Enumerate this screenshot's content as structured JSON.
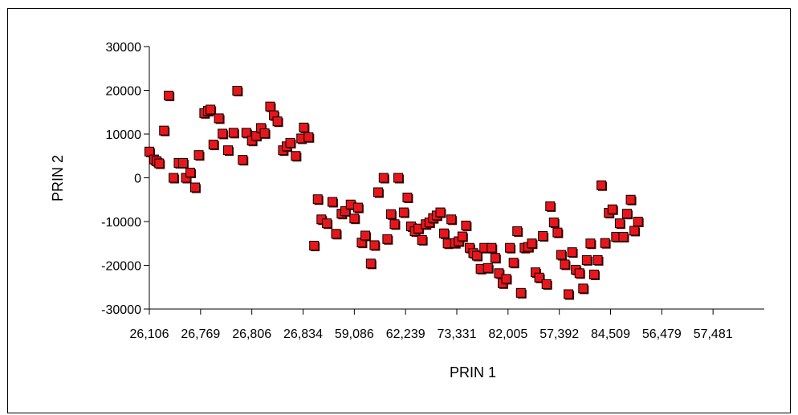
{
  "chart_data": {
    "type": "scatter",
    "xlabel": "PRIN 1",
    "ylabel": "PRIN 2",
    "ylim": [
      -30000,
      30000
    ],
    "y_ticks": [
      30000,
      20000,
      10000,
      0,
      -10000,
      -20000,
      -30000
    ],
    "y_tick_labels": [
      "30000",
      "20000",
      "10000",
      "0",
      "-10000",
      "-20000",
      "-30000"
    ],
    "x_tick_labels": [
      "26,106",
      "26,769",
      "26,806",
      "26,834",
      "59,086",
      "62,239",
      "73,331",
      "82,005",
      "57,392",
      "84,509",
      "56,479",
      "57,481"
    ],
    "x_tick_index": [
      0,
      14,
      28,
      42,
      56,
      70,
      84,
      98,
      112,
      126,
      140,
      154
    ],
    "x_index_range": [
      0,
      168
    ],
    "marker": {
      "shape": "square",
      "fill": "#e8161b",
      "stroke": "#000000"
    },
    "points": [
      {
        "x": 0,
        "y": 6000
      },
      {
        "x": 1.3,
        "y": 4200
      },
      {
        "x": 2,
        "y": 3800
      },
      {
        "x": 2.7,
        "y": 3300
      },
      {
        "x": 4,
        "y": 10800
      },
      {
        "x": 5.3,
        "y": 18800
      },
      {
        "x": 6.6,
        "y": 0
      },
      {
        "x": 8,
        "y": 3400
      },
      {
        "x": 9.2,
        "y": 3400
      },
      {
        "x": 10,
        "y": 0
      },
      {
        "x": 11.2,
        "y": 1200
      },
      {
        "x": 12.5,
        "y": -2200
      },
      {
        "x": 13.5,
        "y": 5200
      },
      {
        "x": 15,
        "y": 14800
      },
      {
        "x": 16,
        "y": 15300
      },
      {
        "x": 16.7,
        "y": 15600
      },
      {
        "x": 17.5,
        "y": 7600
      },
      {
        "x": 19,
        "y": 13600
      },
      {
        "x": 20,
        "y": 10100
      },
      {
        "x": 21.5,
        "y": 6300
      },
      {
        "x": 23,
        "y": 10300
      },
      {
        "x": 24,
        "y": 19900
      },
      {
        "x": 25.5,
        "y": 4100
      },
      {
        "x": 26.5,
        "y": 10300
      },
      {
        "x": 28,
        "y": 8500
      },
      {
        "x": 29.2,
        "y": 9600
      },
      {
        "x": 30.5,
        "y": 11400
      },
      {
        "x": 31.5,
        "y": 10200
      },
      {
        "x": 33,
        "y": 16300
      },
      {
        "x": 34,
        "y": 14300
      },
      {
        "x": 35,
        "y": 12900
      },
      {
        "x": 36.5,
        "y": 6300
      },
      {
        "x": 37.5,
        "y": 7200
      },
      {
        "x": 38.5,
        "y": 8000
      },
      {
        "x": 40,
        "y": 5000
      },
      {
        "x": 41.5,
        "y": 9000
      },
      {
        "x": 42.2,
        "y": 11500
      },
      {
        "x": 43.5,
        "y": 9300
      },
      {
        "x": 45,
        "y": -15500
      },
      {
        "x": 46,
        "y": -4900
      },
      {
        "x": 47,
        "y": -9500
      },
      {
        "x": 48.5,
        "y": -10400
      },
      {
        "x": 50,
        "y": -5500
      },
      {
        "x": 51,
        "y": -12800
      },
      {
        "x": 52.5,
        "y": -8200
      },
      {
        "x": 53.5,
        "y": -7600
      },
      {
        "x": 55,
        "y": -6100
      },
      {
        "x": 56,
        "y": -9300
      },
      {
        "x": 57,
        "y": -6800
      },
      {
        "x": 58,
        "y": -14800
      },
      {
        "x": 59,
        "y": -13200
      },
      {
        "x": 60.5,
        "y": -19600
      },
      {
        "x": 61.5,
        "y": -15400
      },
      {
        "x": 62.5,
        "y": -3300
      },
      {
        "x": 64,
        "y": 0
      },
      {
        "x": 65,
        "y": -14000
      },
      {
        "x": 66,
        "y": -8300
      },
      {
        "x": 67,
        "y": -10600
      },
      {
        "x": 68,
        "y": 0
      },
      {
        "x": 69.5,
        "y": -7900
      },
      {
        "x": 70.5,
        "y": -4500
      },
      {
        "x": 71.5,
        "y": -11100
      },
      {
        "x": 72.5,
        "y": -12200
      },
      {
        "x": 73.5,
        "y": -11600
      },
      {
        "x": 74.5,
        "y": -14200
      },
      {
        "x": 75.5,
        "y": -10600
      },
      {
        "x": 76.5,
        "y": -10200
      },
      {
        "x": 77.5,
        "y": -9200
      },
      {
        "x": 78.5,
        "y": -8600
      },
      {
        "x": 79.5,
        "y": -7900
      },
      {
        "x": 80.5,
        "y": -12700
      },
      {
        "x": 81.5,
        "y": -15000
      },
      {
        "x": 82.5,
        "y": -9500
      },
      {
        "x": 83.5,
        "y": -14900
      },
      {
        "x": 84.5,
        "y": -14500
      },
      {
        "x": 85.5,
        "y": -13400
      },
      {
        "x": 86.5,
        "y": -10900
      },
      {
        "x": 87.5,
        "y": -16000
      },
      {
        "x": 88.5,
        "y": -17200
      },
      {
        "x": 89.5,
        "y": -17800
      },
      {
        "x": 90.5,
        "y": -20800
      },
      {
        "x": 91.5,
        "y": -16000
      },
      {
        "x": 92.5,
        "y": -20600
      },
      {
        "x": 93.5,
        "y": -16000
      },
      {
        "x": 94.5,
        "y": -18300
      },
      {
        "x": 95.5,
        "y": -21800
      },
      {
        "x": 96.5,
        "y": -24100
      },
      {
        "x": 97.5,
        "y": -23100
      },
      {
        "x": 98.5,
        "y": -16000
      },
      {
        "x": 99.5,
        "y": -19400
      },
      {
        "x": 100.5,
        "y": -12200
      },
      {
        "x": 101.5,
        "y": -26300
      },
      {
        "x": 102.5,
        "y": -16000
      },
      {
        "x": 103.5,
        "y": -15800
      },
      {
        "x": 104.5,
        "y": -15000
      },
      {
        "x": 105.5,
        "y": -21600
      },
      {
        "x": 106.5,
        "y": -22800
      },
      {
        "x": 107.5,
        "y": -13300
      },
      {
        "x": 108.5,
        "y": -24300
      },
      {
        "x": 109.5,
        "y": -6500
      },
      {
        "x": 110.5,
        "y": -10200
      },
      {
        "x": 111.5,
        "y": -12500
      },
      {
        "x": 112.5,
        "y": -17600
      },
      {
        "x": 113.5,
        "y": -19800
      },
      {
        "x": 114.5,
        "y": -26600
      },
      {
        "x": 115.5,
        "y": -17000
      },
      {
        "x": 116.5,
        "y": -21000
      },
      {
        "x": 117.5,
        "y": -21800
      },
      {
        "x": 118.5,
        "y": -25300
      },
      {
        "x": 119.5,
        "y": -18800
      },
      {
        "x": 120.5,
        "y": -15000
      },
      {
        "x": 121.5,
        "y": -22100
      },
      {
        "x": 122.5,
        "y": -18800
      },
      {
        "x": 123.5,
        "y": -1700
      },
      {
        "x": 124.5,
        "y": -14900
      },
      {
        "x": 125.5,
        "y": -8000
      },
      {
        "x": 126.5,
        "y": -7200
      },
      {
        "x": 127.5,
        "y": -13500
      },
      {
        "x": 128.5,
        "y": -10400
      },
      {
        "x": 129.5,
        "y": -13500
      },
      {
        "x": 130.5,
        "y": -8200
      },
      {
        "x": 131.5,
        "y": -5000
      },
      {
        "x": 132.5,
        "y": -12100
      },
      {
        "x": 133.5,
        "y": -10000
      }
    ]
  }
}
